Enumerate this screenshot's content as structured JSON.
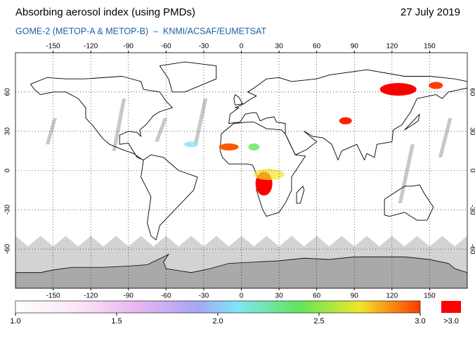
{
  "title": "Absorbing aerosol index (using PMDs)",
  "date": "27 July 2019",
  "subtitle": "GOME-2 (METOP-A & METOP-B)  –  KNMI/ACSAF/EUMETSAT",
  "map": {
    "lonlim": [
      -180,
      180
    ],
    "latlim": [
      -90,
      90
    ],
    "lon_ticks": [
      -150,
      -120,
      -90,
      -60,
      -30,
      0,
      30,
      60,
      90,
      120,
      150
    ],
    "lat_ticks": [
      60,
      30,
      0,
      -30,
      -60
    ]
  },
  "colorbar": {
    "range": [
      1,
      3
    ],
    "ticks": [
      {
        "value": 1,
        "label": "1.0"
      },
      1.5,
      {
        "value": 2,
        "label": "2.0"
      },
      2.5,
      {
        "value": 3,
        "label": "3.0"
      }
    ],
    "over_label": ">3.0"
  }
}
